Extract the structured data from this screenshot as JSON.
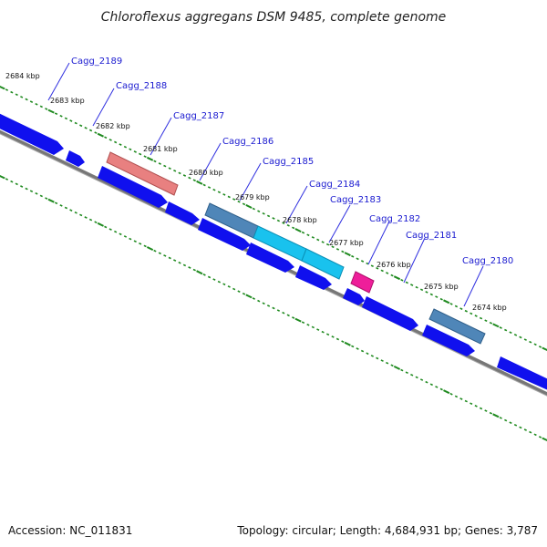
{
  "title": "Chloroflexus aggregans DSM 9485, complete genome",
  "footer": {
    "accession": "Accession: NC_011831",
    "summary": "Topology: circular; Length: 4,684,931 bp; Genes: 3,787"
  },
  "colors": {
    "cds_forward": "#1010ee",
    "backbone": "#777777",
    "tick": "#1f8a1f",
    "label": "#1a1ad0",
    "leader": "#3030e0",
    "highlight_salmon": "#e88080",
    "highlight_steel": "#4f86b8",
    "highlight_cyan": "#19c2ee",
    "highlight_magenta": "#ee1e9a"
  },
  "kbp_labels": [
    "2684 kbp",
    "2683 kbp",
    "2682 kbp",
    "2681 kbp",
    "2680 kbp",
    "2679 kbp",
    "2678 kbp",
    "2677 kbp",
    "2676 kbp",
    "2675 kbp",
    "2674 kbp"
  ],
  "gene_labels": [
    "Cagg_2189",
    "Cagg_2188",
    "Cagg_2187",
    "Cagg_2186",
    "Cagg_2185",
    "Cagg_2184",
    "Cagg_2183",
    "Cagg_2182",
    "Cagg_2181",
    "Cagg_2180"
  ]
}
